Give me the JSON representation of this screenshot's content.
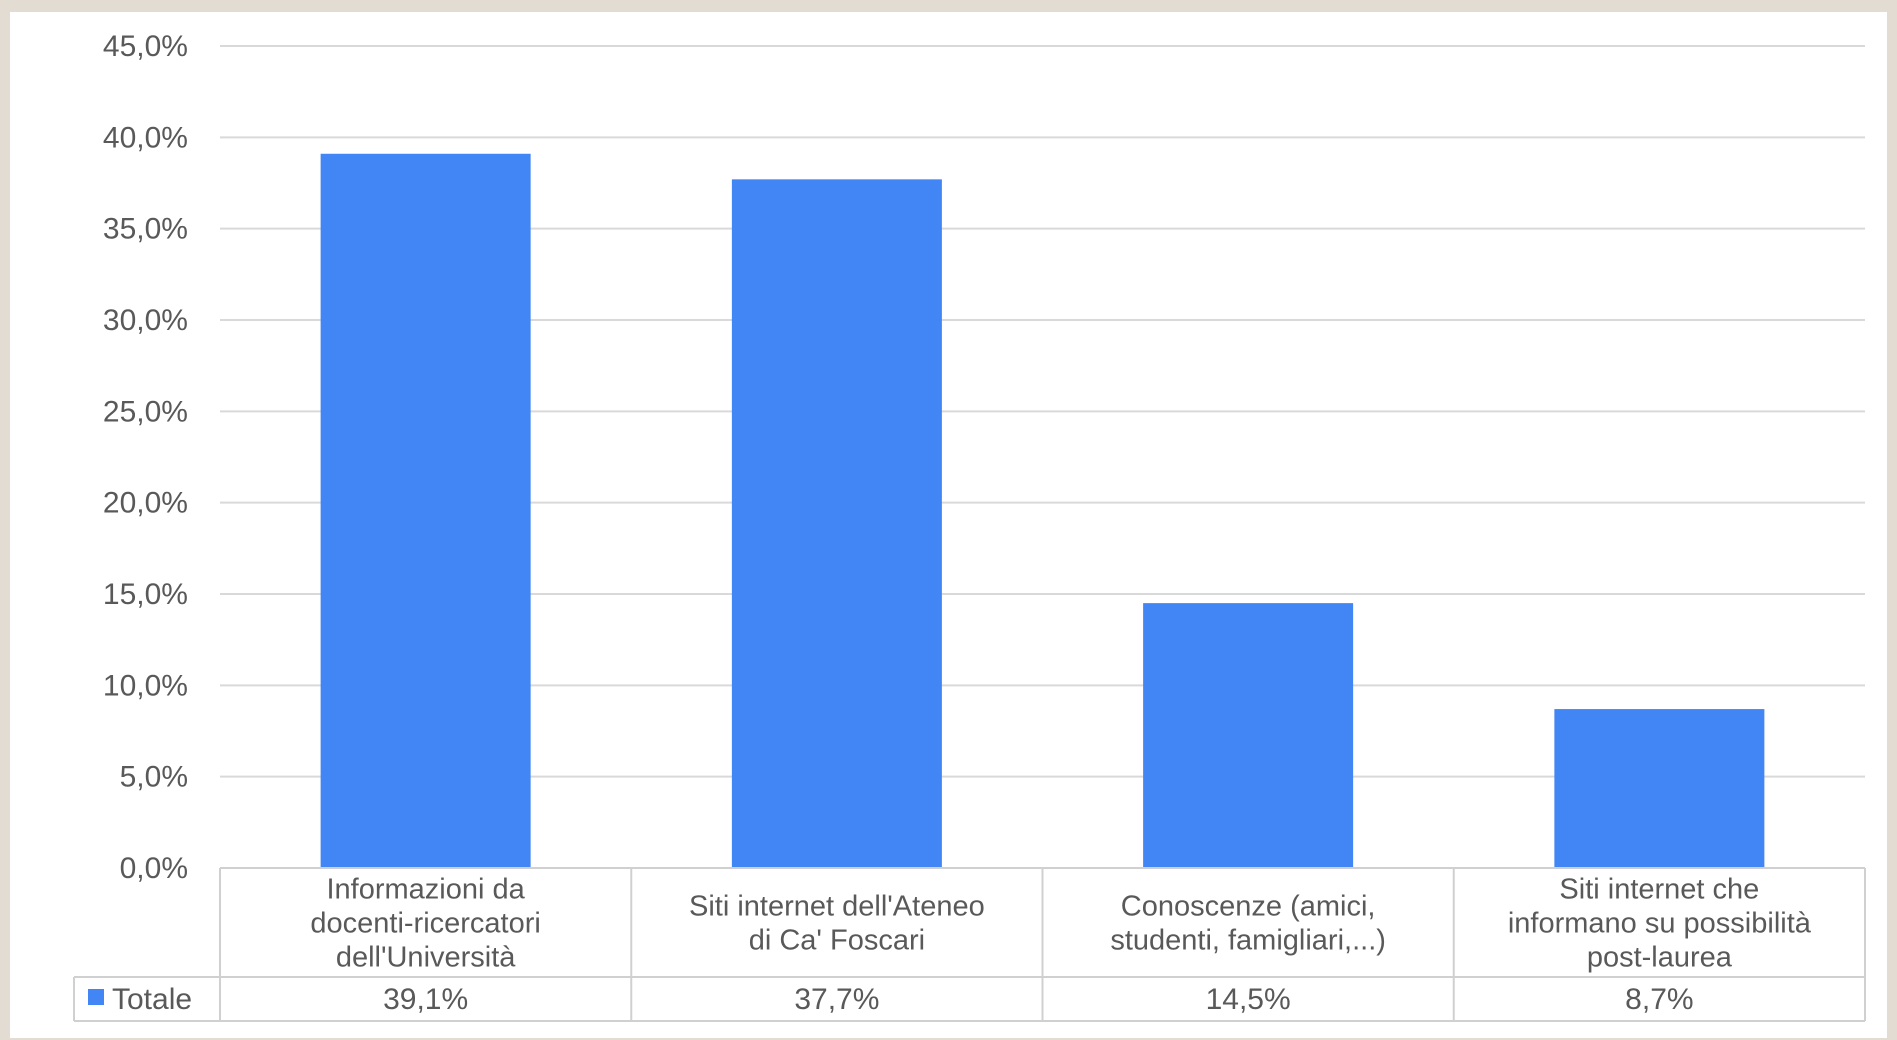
{
  "chart_data": {
    "type": "bar",
    "title": "",
    "xlabel": "",
    "ylabel": "",
    "ylim": [
      0,
      45
    ],
    "yticks": [
      0,
      5,
      10,
      15,
      20,
      25,
      30,
      35,
      40,
      45
    ],
    "ytick_labels": [
      "0,0%",
      "5,0%",
      "10,0%",
      "15,0%",
      "20,0%",
      "25,0%",
      "30,0%",
      "35,0%",
      "40,0%",
      "45,0%"
    ],
    "grid": true,
    "legend_placement": "bottom-left (data table)",
    "categories": [
      [
        "Informazioni da",
        "docenti-ricercatori",
        "dell'Università"
      ],
      [
        "Siti internet dell'Ateneo",
        "di Ca' Foscari"
      ],
      [
        "Conoscenze (amici,",
        "studenti, famigliari,...)"
      ],
      [
        "Siti internet che",
        "informano su possibilità",
        "post-laurea"
      ]
    ],
    "series": [
      {
        "name": "Totale",
        "values": [
          39.1,
          37.7,
          14.5,
          8.7
        ],
        "labels": [
          "39,1%",
          "37,7%",
          "14,5%",
          "8,7%"
        ],
        "color": "#4285f4"
      }
    ]
  }
}
